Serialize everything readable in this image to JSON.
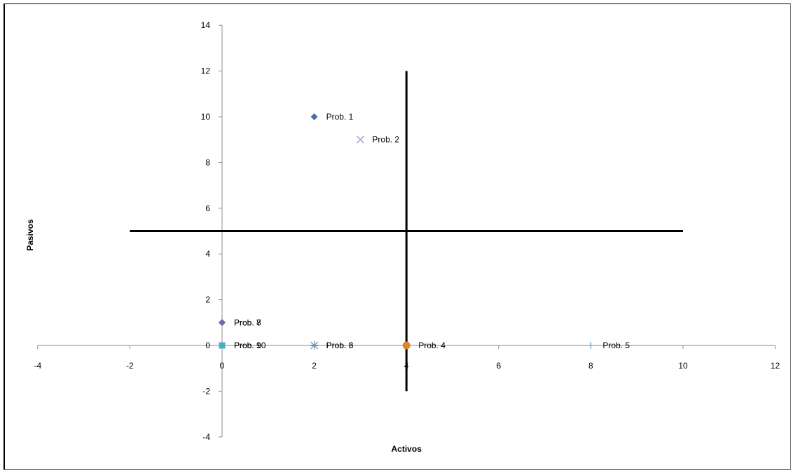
{
  "chart_data": {
    "type": "scatter",
    "xlabel": "Activos",
    "ylabel": "Pasivos",
    "xlim": [
      -4,
      12
    ],
    "ylim": [
      -4,
      14
    ],
    "x_ticks": [
      -4,
      -2,
      0,
      2,
      4,
      6,
      8,
      10,
      12
    ],
    "y_ticks": [
      -4,
      -2,
      0,
      2,
      4,
      6,
      8,
      10,
      12,
      14
    ],
    "grid": false,
    "legend": "none",
    "points": [
      {
        "label": "Prob. 1",
        "x": 2,
        "y": 10,
        "marker": "diamond",
        "color": "#4a6fa5"
      },
      {
        "label": "Prob. 2",
        "x": 3,
        "y": 9,
        "marker": "x",
        "color": "#9a8fc4"
      },
      {
        "label": "Prob. 3",
        "x": 2,
        "y": 0,
        "marker": "star",
        "color": "#6aa6c4"
      },
      {
        "label": "Prob. 4",
        "x": 4,
        "y": 0,
        "marker": "circle",
        "color": "#d9892b"
      },
      {
        "label": "Prob. 5",
        "x": 8,
        "y": 0,
        "marker": "plus",
        "color": "#6fa0d6"
      },
      {
        "label": "Prob. 6",
        "x": 2,
        "y": 0,
        "marker": "dash",
        "color": "#d8605a"
      },
      {
        "label": "Prob. 7",
        "x": 0,
        "y": 1,
        "marker": "diamond",
        "color": "#7f64a8"
      },
      {
        "label": "Prob. 8",
        "x": 0,
        "y": 1,
        "marker": "diamond",
        "color": "#7f64a8"
      },
      {
        "label": "Prob. 9",
        "x": 0,
        "y": 0,
        "marker": "square",
        "color": "#c89a3a"
      },
      {
        "label": "Prob. 10",
        "x": 0,
        "y": 0,
        "marker": "square",
        "color": "#4bacc6"
      }
    ],
    "reference_lines": [
      {
        "orientation": "horizontal",
        "y": 5,
        "from": -2,
        "to": 10,
        "color": "#000000"
      },
      {
        "orientation": "vertical",
        "x": 4,
        "from": -2,
        "to": 12,
        "color": "#000000"
      }
    ]
  }
}
